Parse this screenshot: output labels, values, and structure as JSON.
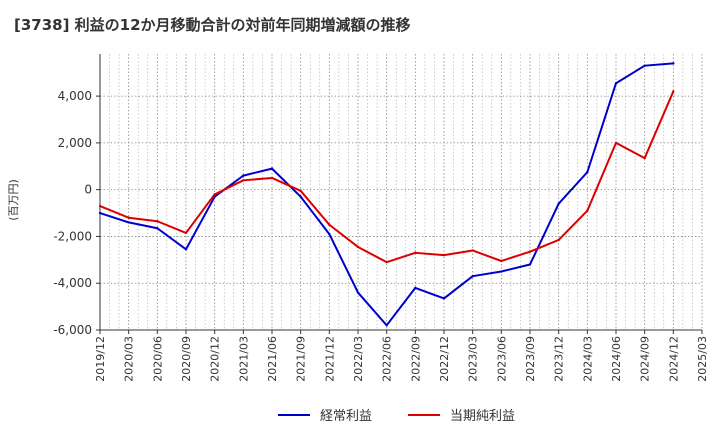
{
  "chart_data": {
    "type": "line",
    "title": "[3738]  利益の12か月移動合計の対前年同期増減額の推移",
    "ylabel": "(百万円)",
    "xlabel": "",
    "ylim": [
      -6000,
      5800
    ],
    "yticks": [
      4000,
      2000,
      0,
      -2000,
      -4000,
      -6000
    ],
    "ytick_labels": [
      "4,000",
      "2,000",
      "0",
      "-2,000",
      "-4,000",
      "-6,000"
    ],
    "x": [
      "2019/12",
      "2020/03",
      "2020/06",
      "2020/09",
      "2020/12",
      "2021/03",
      "2021/06",
      "2021/09",
      "2021/12",
      "2022/03",
      "2022/06",
      "2022/09",
      "2022/12",
      "2023/03",
      "2023/06",
      "2023/09",
      "2023/12",
      "2024/03",
      "2024/06",
      "2024/09",
      "2024/12",
      "2025/03"
    ],
    "grid": true,
    "legend_position": "bottom",
    "series": [
      {
        "name": "経常利益",
        "color": "#0000cc",
        "values": [
          -1000,
          -1400,
          -1650,
          -2550,
          -300,
          600,
          900,
          -300,
          -1900,
          -4400,
          -5800,
          -4200,
          -4650,
          -3700,
          -3500,
          -3200,
          -600,
          750,
          4550,
          5300,
          5400,
          null
        ]
      },
      {
        "name": "当期純利益",
        "color": "#dd0000",
        "values": [
          -700,
          -1200,
          -1350,
          -1850,
          -200,
          400,
          500,
          -50,
          -1500,
          -2450,
          -3100,
          -2700,
          -2800,
          -2600,
          -3050,
          -2650,
          -2150,
          -900,
          2000,
          1350,
          4200,
          null
        ]
      }
    ]
  }
}
